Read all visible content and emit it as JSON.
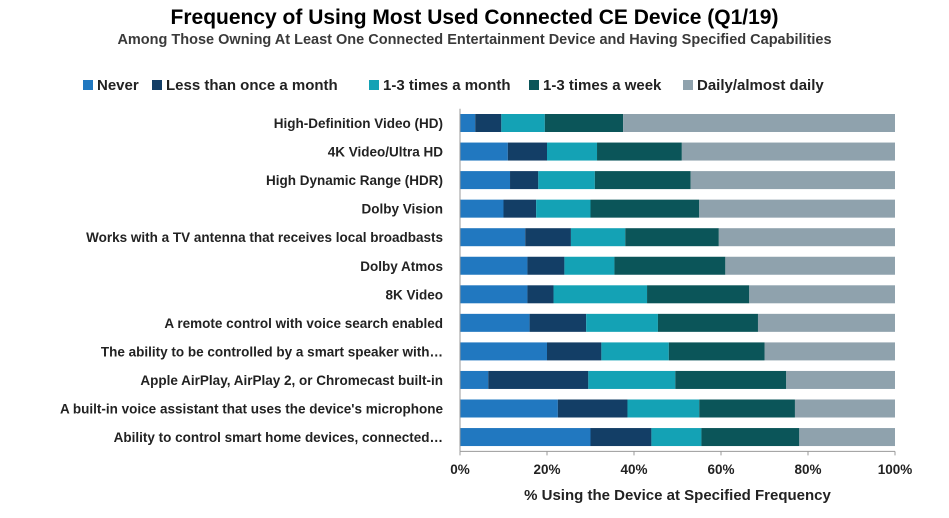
{
  "chart_data": {
    "type": "bar",
    "orientation": "horizontal",
    "stacked": true,
    "title": "Frequency of Using Most Used Connected CE Device (Q1/19)",
    "subtitle": "Among Those Owning At Least One Connected Entertainment Device and Having Specified Capabilities",
    "xlabel": "% Using the Device at Specified Frequency",
    "ylabel": "",
    "xlim": [
      0,
      100
    ],
    "xticks": [
      "0%",
      "20%",
      "40%",
      "60%",
      "80%",
      "100%"
    ],
    "grid": false,
    "legend_position": "top",
    "categories": [
      "High-Definition Video (HD)",
      "4K Video/Ultra HD",
      "High Dynamic Range (HDR)",
      "Dolby Vision",
      "Works with a TV antenna that receives local broadbasts",
      "Dolby Atmos",
      "8K Video",
      "A remote control with voice search enabled",
      "The ability to be controlled by a smart speaker with…",
      "Apple AirPlay, AirPlay 2, or Chromecast built-in",
      "A built-in voice assistant that uses the device's microphone",
      "Ability to control smart home devices, connected…"
    ],
    "series": [
      {
        "name": "Never",
        "color": "#2178c0",
        "values": [
          3.5,
          11,
          11.5,
          10,
          15,
          15.5,
          15.5,
          16,
          20,
          6.5,
          22.5,
          30
        ]
      },
      {
        "name": "Less than once a month",
        "color": "#133e66",
        "values": [
          6,
          9,
          6.5,
          7.5,
          10.5,
          8.5,
          6,
          13,
          12.5,
          23,
          16,
          14
        ]
      },
      {
        "name": "1-3 times a month",
        "color": "#14a2b5",
        "values": [
          10,
          11.5,
          13,
          12.5,
          12.5,
          11.5,
          21.5,
          16.5,
          15.5,
          20,
          16.5,
          11.5
        ]
      },
      {
        "name": "1-3 times a week",
        "color": "#0b5559",
        "values": [
          18,
          19.5,
          22,
          25,
          21.5,
          25.5,
          23.5,
          23,
          22,
          25.5,
          22,
          22.5
        ]
      },
      {
        "name": "Daily/almost daily",
        "color": "#8fa2ad",
        "values": [
          62.5,
          49,
          47,
          45,
          40.5,
          39,
          33.5,
          31.5,
          30,
          25,
          23,
          22
        ]
      }
    ]
  }
}
